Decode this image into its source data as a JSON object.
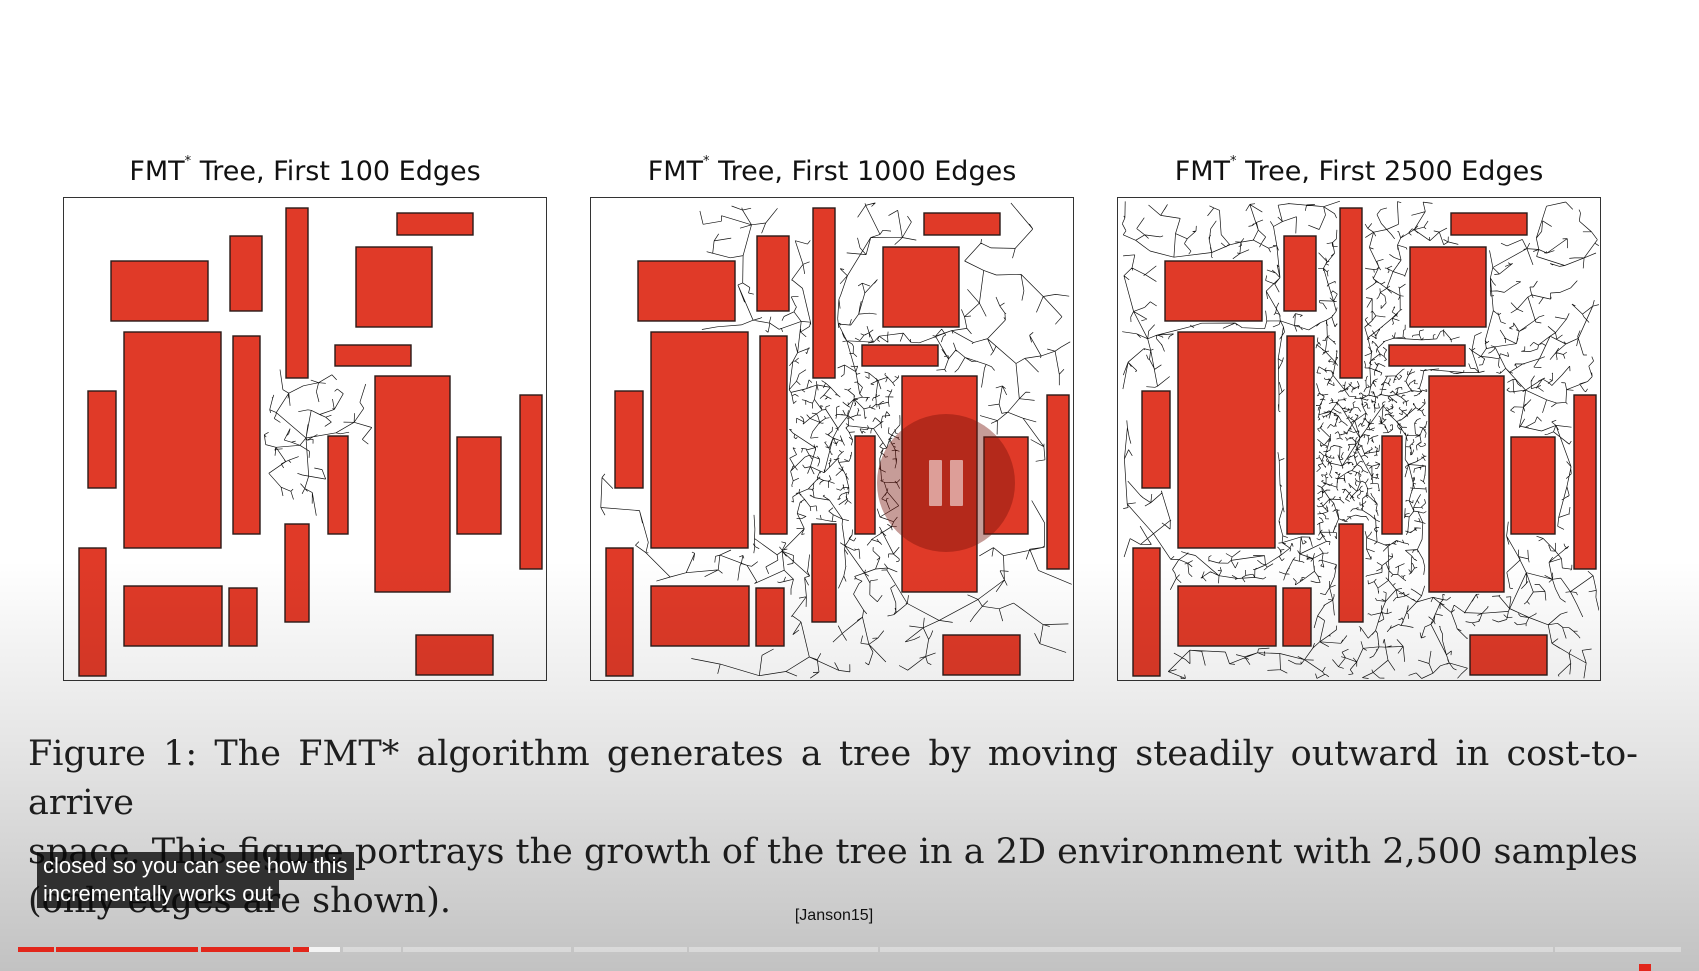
{
  "figure": {
    "panels": [
      {
        "title_prefix": "FMT",
        "title_sup": "*",
        "title_suffix": " Tree, First 100 Edges",
        "edges": 100
      },
      {
        "title_prefix": "FMT",
        "title_sup": "*",
        "title_suffix": " Tree, First 1000 Edges",
        "edges": 1000
      },
      {
        "title_prefix": "FMT",
        "title_sup": "*",
        "title_suffix": " Tree, First 2500 Edges",
        "edges": 2500
      }
    ],
    "obstacle_color": "#e03a28",
    "obstacle_border": "#2a1a18",
    "edge_color": "#111111"
  },
  "caption": {
    "line1": "Figure 1: The FMT* algorithm generates a tree by moving steadily outward in cost-to-arrive",
    "line2": "space. This figure portrays the growth of the tree in a 2D environment with 2,500 samples",
    "line3": "(only edges are shown)."
  },
  "citation": "[Janson15]",
  "player": {
    "subtitles": [
      "closed so you can see how this",
      "incrementally works out"
    ],
    "state_icon": "pause-icon",
    "accent_color": "#e2261b",
    "progress_fraction": 0.175,
    "buffered_fraction": 0.195
  }
}
